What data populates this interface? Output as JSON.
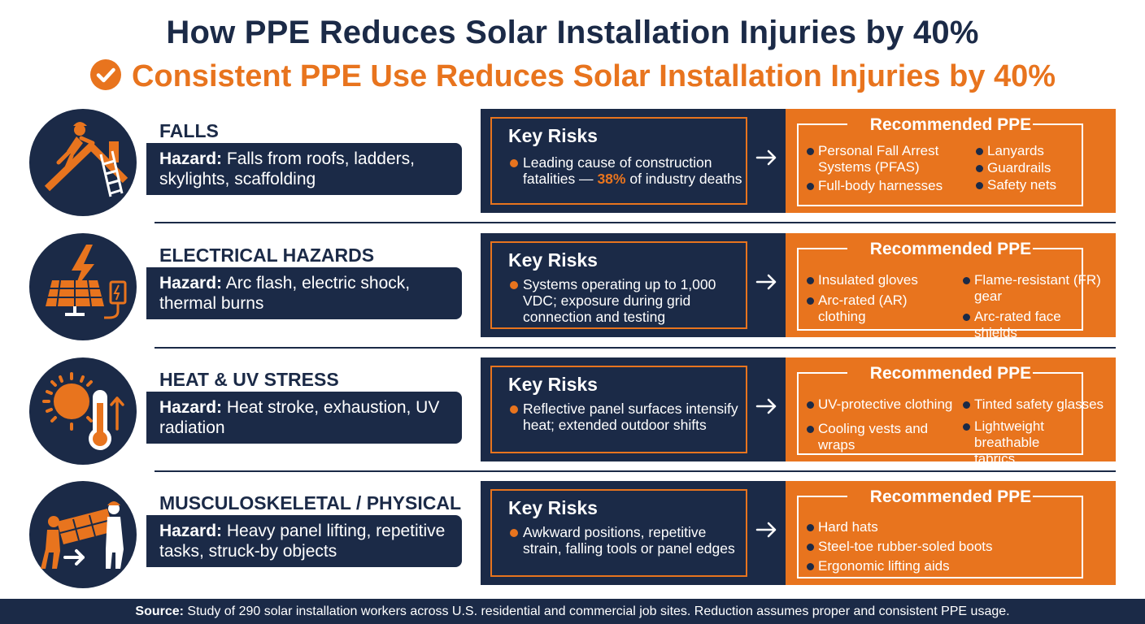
{
  "title": "How PPE Reduces Solar Installation Injuries by 40%",
  "subtitle": "Consistent PPE Use Reduces Solar Installation Injuries by 40%",
  "colors": {
    "navy": "#1b2a47",
    "orange": "#e8741e",
    "white": "#ffffff"
  },
  "hazard_label": "Hazard:",
  "rows": [
    {
      "icon": "roofer-fall-icon",
      "name": "FALLS",
      "hazard": "Falls from roofs, ladders, skylights, scaffolding",
      "risk_title": "Key Risks",
      "risk_pre": "Leading cause of construction fatalities — ",
      "risk_highlight": "38%",
      "risk_post": " of industry deaths",
      "ppe_title": "Recommended PPE",
      "ppe": [
        "Personal Fall Arrest Systems (PFAS)",
        "Full-body harnesses",
        "Lanyards",
        "Guardrails",
        "Safety nets"
      ]
    },
    {
      "icon": "electric-panel-icon",
      "name": "ELECTRICAL HAZARDS",
      "hazard": "Arc flash, electric shock, thermal burns",
      "risk_title": "Key Risks",
      "risk_pre": "Systems operating up to 1,000 VDC; exposure during grid connection and testing",
      "risk_highlight": "",
      "risk_post": "",
      "ppe_title": "Recommended PPE",
      "ppe": [
        "Insulated gloves",
        "Arc-rated (AR) clothing",
        "Flame-resistant (FR) gear",
        "Arc-rated face shields"
      ]
    },
    {
      "icon": "sun-thermometer-icon",
      "name": "HEAT & UV STRESS",
      "hazard": "Heat stroke, exhaustion, UV radiation",
      "risk_title": "Key Risks",
      "risk_pre": "Reflective panel surfaces intensify heat; extended outdoor shifts",
      "risk_highlight": "",
      "risk_post": "",
      "ppe_title": "Recommended PPE",
      "ppe": [
        "UV-protective clothing",
        "Cooling vests and wraps",
        "Tinted safety glasses",
        "Lightweight breathable fabrics"
      ]
    },
    {
      "icon": "workers-carrying-panel-icon",
      "name": "MUSCULOSKELETAL / PHYSICAL",
      "hazard": "Heavy panel lifting, repetitive tasks, struck-by objects",
      "risk_title": "Key Risks",
      "risk_pre": "Awkward positions, repetitive strain, falling tools or panel edges",
      "risk_highlight": "",
      "risk_post": "",
      "ppe_title": "Recommended PPE",
      "ppe": [
        "Hard hats",
        "Steel-toe rubber-soled boots",
        "Ergonomic lifting aids"
      ]
    }
  ],
  "footer": {
    "label": "Source:",
    "text": "Study of 290 solar installation workers across U.S. residential and commercial job sites. Reduction assumes proper and consistent PPE usage."
  }
}
